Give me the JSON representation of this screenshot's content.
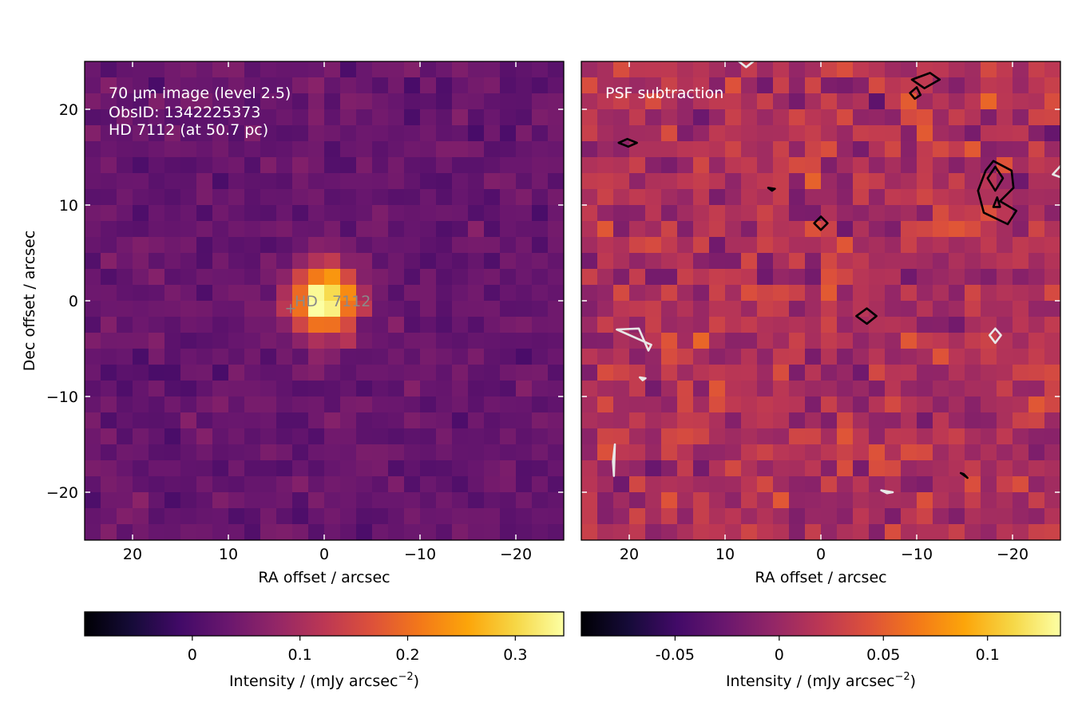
{
  "chart_data": [
    {
      "type": "heatmap",
      "colormap": "inferno",
      "overlay_text": [
        "70 μm image (level 2.5)",
        "ObsID: 1342225373",
        "HD 7112 (at 50.7 pc)"
      ],
      "star_label": "HD   7112",
      "star_position_arcsec": {
        "ra": 3.5,
        "dec": -0.8
      },
      "xlabel": "RA offset / arcsec",
      "ylabel": "Dec offset / arcsec",
      "xlim": [
        25,
        -25
      ],
      "ylim": [
        -25,
        25
      ],
      "xticks": [
        20,
        10,
        0,
        -10,
        -20
      ],
      "xtick_labels": [
        "20",
        "10",
        "0",
        "−10",
        "−20"
      ],
      "yticks": [
        20,
        10,
        0,
        -10,
        -20
      ],
      "ytick_labels": [
        "20",
        "10",
        "0",
        "−10",
        "−20"
      ],
      "grid_size": 30,
      "pixel_scale_arcsec": 1.6667,
      "source": {
        "ra": 0,
        "dec": 0,
        "peak": 0.34,
        "sigma_arcsec": 2.4
      },
      "colorbar": {
        "label": "Intensity / (mJy arcsec",
        "label_exp": "−2",
        "label_end": ")",
        "range": [
          -0.1,
          0.345
        ],
        "ticks": [
          0,
          0.1,
          0.2,
          0.3
        ],
        "tick_labels": [
          "0",
          "0.1",
          "0.2",
          "0.3"
        ]
      }
    },
    {
      "type": "heatmap",
      "colormap": "inferno",
      "overlay_text": [
        "PSF subtraction"
      ],
      "xlabel": "RA offset / arcsec",
      "xlim": [
        25,
        -25
      ],
      "ylim": [
        -25,
        25
      ],
      "xticks": [
        20,
        10,
        0,
        -10,
        -20
      ],
      "xtick_labels": [
        "20",
        "10",
        "0",
        "−10",
        "−20"
      ],
      "grid_size": 30,
      "pixel_scale_arcsec": 1.6667,
      "contours": {
        "positive_color": "#000000",
        "negative_color": "#e8e8e8"
      },
      "colorbar": {
        "label": "Intensity / (mJy arcsec",
        "label_exp": "−2",
        "label_end": ")",
        "range": [
          -0.095,
          0.135
        ],
        "ticks": [
          -0.05,
          0,
          0.05,
          0.1
        ],
        "tick_labels": [
          "-0.05",
          "0",
          "0.05",
          "0.1"
        ]
      }
    }
  ]
}
